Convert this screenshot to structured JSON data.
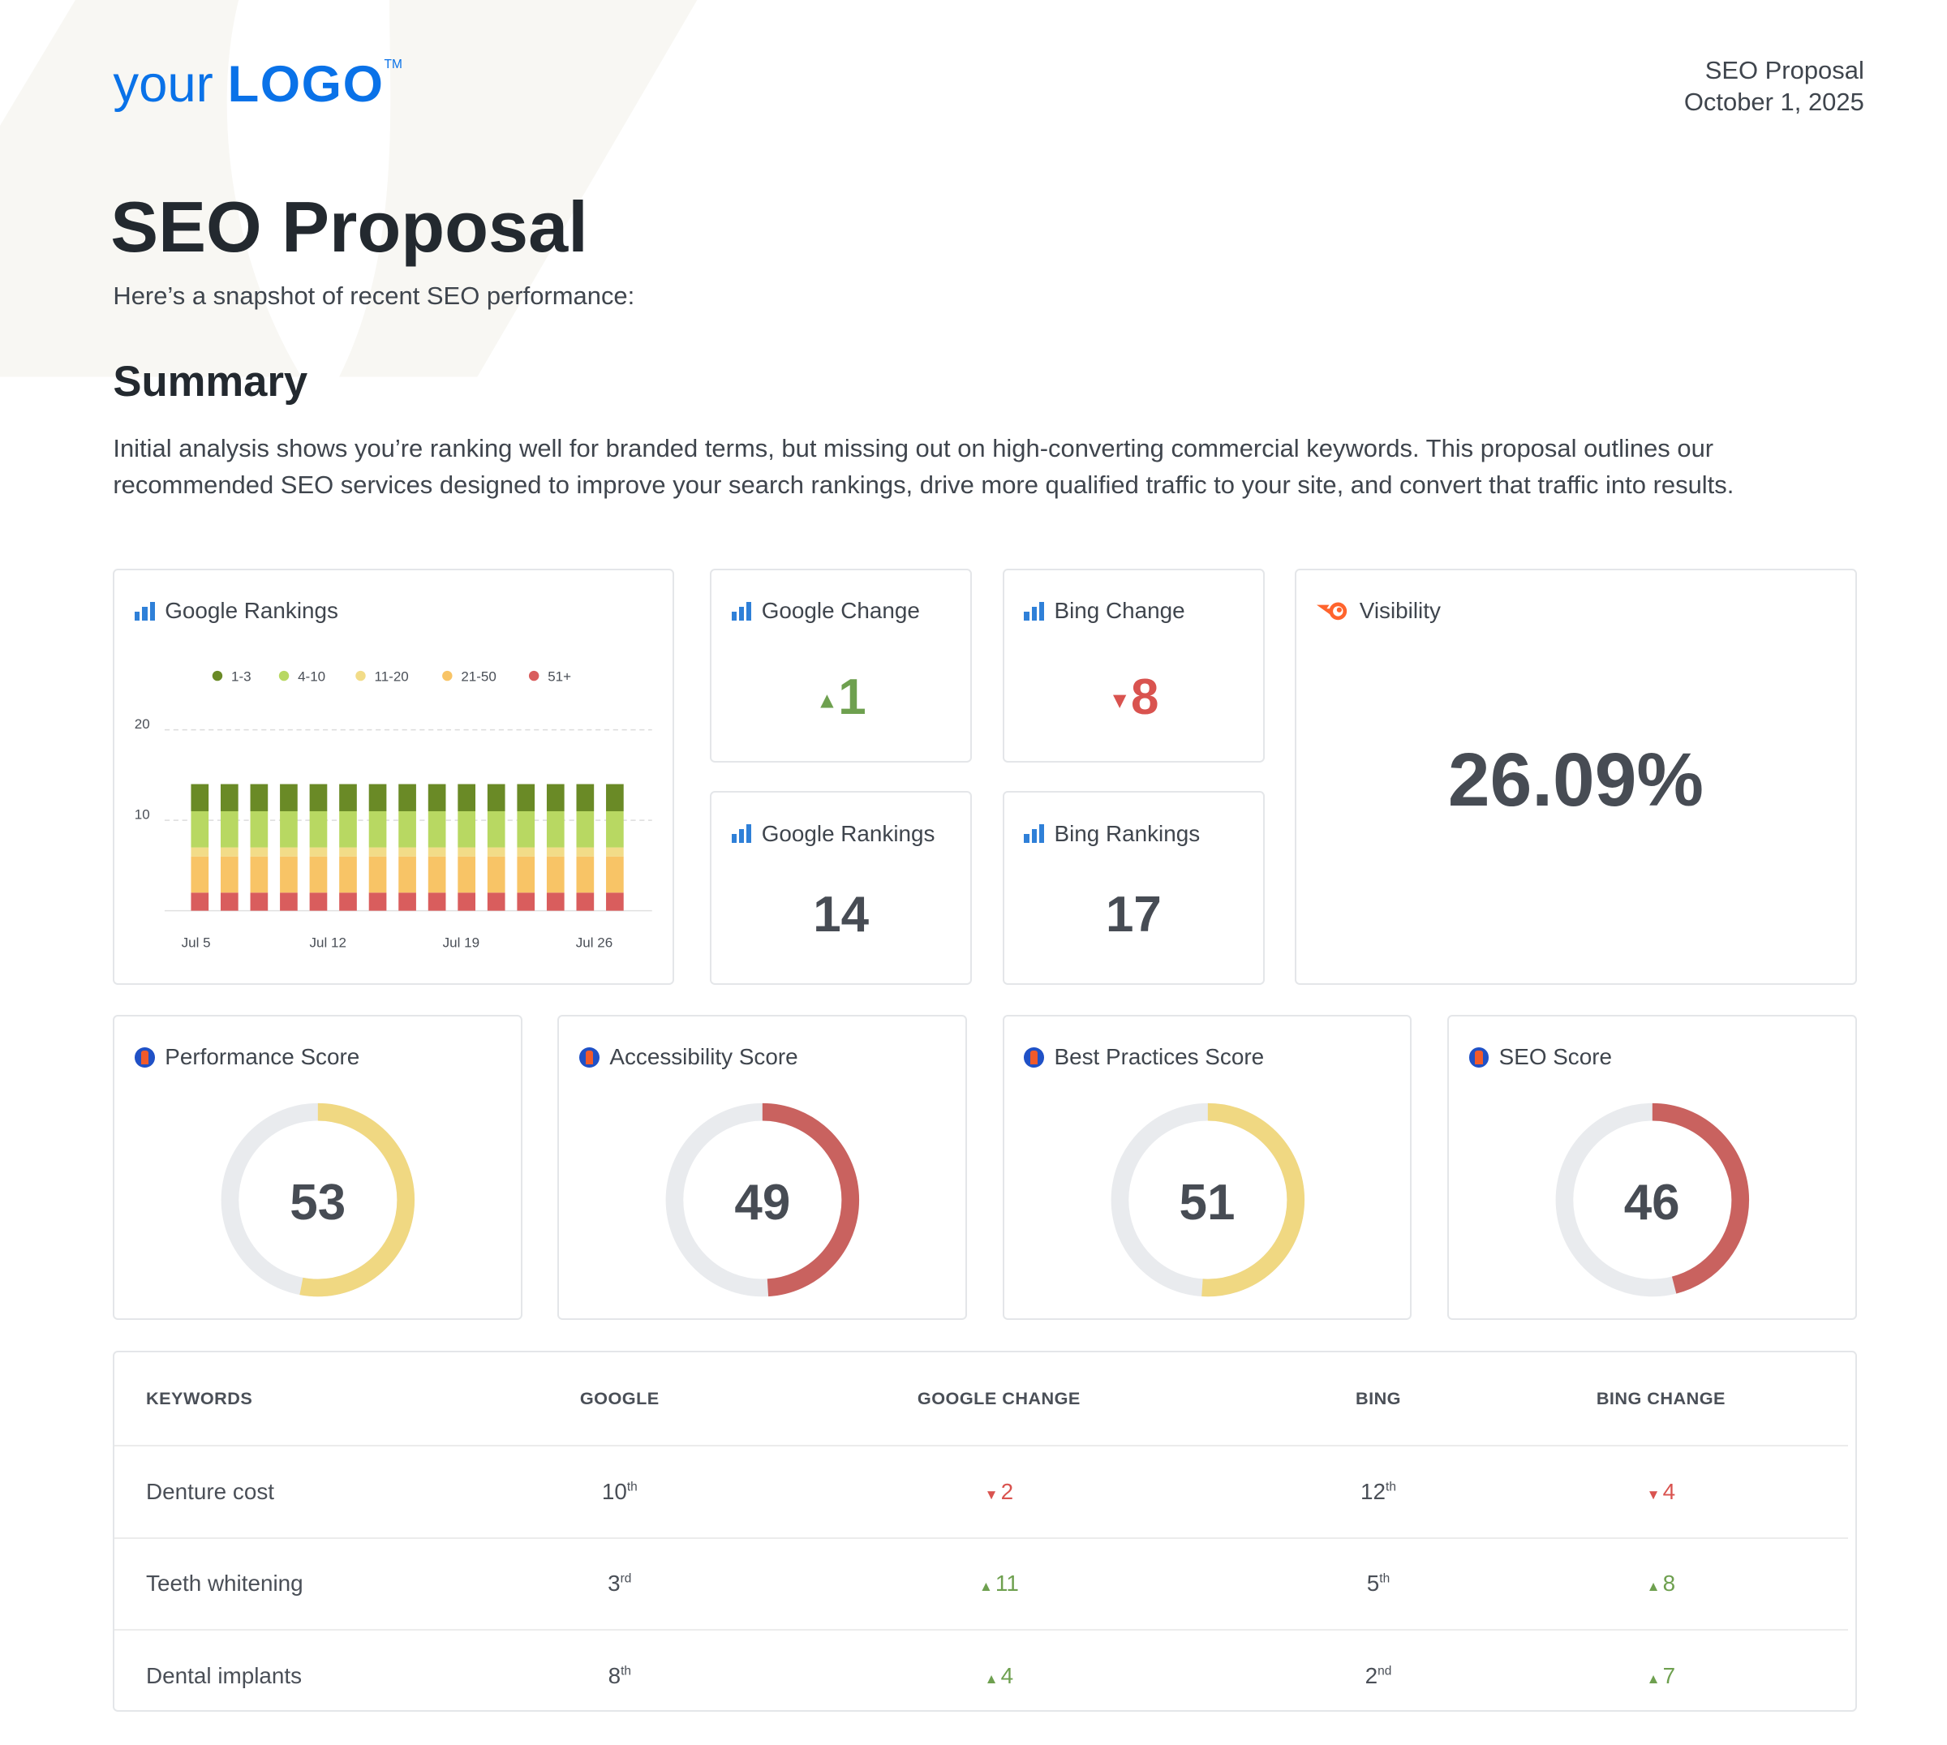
{
  "logo": {
    "text_light": "your",
    "text_bold": "LOGO",
    "tm": "TM",
    "color": "#0a72e8"
  },
  "header": {
    "doc_type": "SEO Proposal",
    "date": "October 1, 2025"
  },
  "title": "SEO Proposal",
  "subtitle": "Here’s a snapshot of recent SEO performance:",
  "summary": {
    "heading": "Summary",
    "text": "Initial analysis shows you’re ranking well for branded terms, but missing out on high-converting commercial keywords. This proposal outlines our recommended SEO services designed to improve your search rankings, drive more qualified traffic to your site, and convert that traffic into results."
  },
  "widgets": {
    "google_rankings_chart": {
      "title": "Google Rankings",
      "icon": "bar-chart-icon"
    },
    "google_change": {
      "title": "Google Change",
      "value": "1",
      "direction": "up",
      "icon": "bar-chart-icon"
    },
    "bing_change": {
      "title": "Bing Change",
      "value": "8",
      "direction": "down",
      "icon": "bar-chart-icon"
    },
    "google_rankings": {
      "title": "Google Rankings",
      "value": "14",
      "icon": "bar-chart-icon"
    },
    "bing_rankings": {
      "title": "Bing Rankings",
      "value": "17",
      "icon": "bar-chart-icon"
    },
    "visibility": {
      "title": "Visibility",
      "value": "26.09%",
      "icon": "semrush-icon"
    }
  },
  "scores": [
    {
      "title": "Performance Score",
      "value": 53,
      "color": "#f0d882",
      "icon": "lighthouse-icon"
    },
    {
      "title": "Accessibility Score",
      "value": 49,
      "color": "#c9625f",
      "icon": "lighthouse-icon"
    },
    {
      "title": "Best Practices Score",
      "value": 51,
      "color": "#f0d882",
      "icon": "lighthouse-icon"
    },
    {
      "title": "SEO Score",
      "value": 46,
      "color": "#c9625f",
      "icon": "lighthouse-icon"
    }
  ],
  "table": {
    "headers": [
      "KEYWORDS",
      "GOOGLE",
      "GOOGLE CHANGE",
      "BING",
      "BING CHANGE"
    ],
    "rows": [
      {
        "keyword": "Denture cost",
        "google": "10",
        "google_suffix": "th",
        "google_change": "2",
        "google_dir": "down",
        "bing": "12",
        "bing_suffix": "th",
        "bing_change": "4",
        "bing_dir": "down"
      },
      {
        "keyword": "Teeth whitening",
        "google": "3",
        "google_suffix": "rd",
        "google_change": "11",
        "google_dir": "up",
        "bing": "5",
        "bing_suffix": "th",
        "bing_change": "8",
        "bing_dir": "up"
      },
      {
        "keyword": "Dental implants",
        "google": "8",
        "google_suffix": "th",
        "google_change": "4",
        "google_dir": "up",
        "bing": "2",
        "bing_suffix": "nd",
        "bing_change": "7",
        "bing_dir": "up"
      }
    ]
  },
  "chart_data": {
    "type": "bar",
    "stacked": true,
    "title": "Google Rankings",
    "x_tick_labels": [
      "Jul 5",
      "Jul 12",
      "Jul 19",
      "Jul 26"
    ],
    "y_ticks": [
      10,
      20
    ],
    "ylim": [
      0,
      20
    ],
    "grid": true,
    "legend_position": "top",
    "bar_count": 15,
    "series": [
      {
        "name": "51+",
        "color": "#d95d5d",
        "values": [
          2,
          2,
          2,
          2,
          2,
          2,
          2,
          2,
          2,
          2,
          2,
          2,
          2,
          2,
          2
        ]
      },
      {
        "name": "21-50",
        "color": "#f8c466",
        "values": [
          4,
          4,
          4,
          4,
          4,
          4,
          4,
          4,
          4,
          4,
          4,
          4,
          4,
          4,
          4
        ]
      },
      {
        "name": "11-20",
        "color": "#f2dc88",
        "values": [
          1,
          1,
          1,
          1,
          1,
          1,
          1,
          1,
          1,
          1,
          1,
          1,
          1,
          1,
          1
        ]
      },
      {
        "name": "4-10",
        "color": "#b8d862",
        "values": [
          4,
          4,
          4,
          4,
          4,
          4,
          4,
          4,
          4,
          4,
          4,
          4,
          4,
          4,
          4
        ]
      },
      {
        "name": "1-3",
        "color": "#6a8a26",
        "values": [
          3,
          3,
          3,
          3,
          3,
          3,
          3,
          3,
          3,
          3,
          3,
          3,
          3,
          3,
          3
        ]
      }
    ]
  }
}
